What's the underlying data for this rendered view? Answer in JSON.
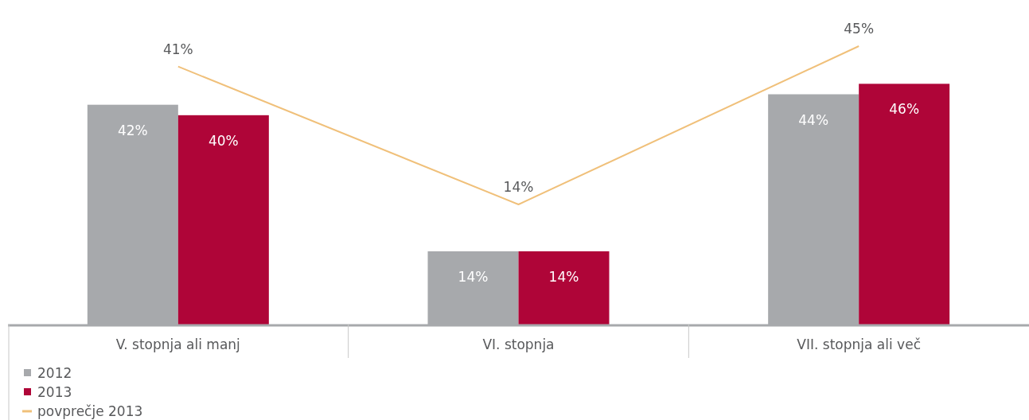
{
  "chart_data": {
    "type": "bar",
    "categories": [
      "V. stopnja ali manj",
      "VI. stopnja",
      "VII. stopnja ali več"
    ],
    "series": [
      {
        "name": "2012",
        "color": "#a7a9ac",
        "values": [
          42,
          14,
          44
        ],
        "value_labels": [
          "42%",
          "14%",
          "44%"
        ]
      },
      {
        "name": "2013",
        "color": "#af0538",
        "values": [
          40,
          14,
          46
        ],
        "value_labels": [
          "40%",
          "14%",
          "46%"
        ]
      },
      {
        "name": "povprečje 2013",
        "type": "line",
        "axis": "y2",
        "color": "#f0c07a",
        "values": [
          41,
          14,
          45
        ],
        "value_labels": [
          "41%",
          "14%",
          "45%"
        ]
      }
    ],
    "tick_labels": "x",
    "legend": "bottom left"
  }
}
